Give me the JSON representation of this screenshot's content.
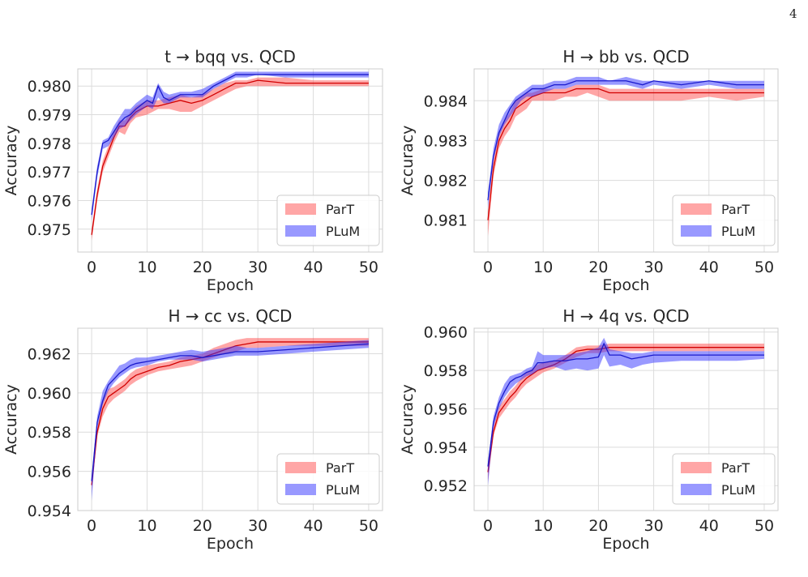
{
  "page_number": "4",
  "chart_data": [
    {
      "type": "area",
      "title": "t → bqq vs. QCD",
      "xlabel": "Epoch",
      "ylabel": "Accuracy",
      "xlim": [
        -2.5,
        52.5
      ],
      "ylim": [
        0.9742,
        0.9806
      ],
      "xticks": [
        0,
        10,
        20,
        30,
        40,
        50
      ],
      "xtick_labels": [
        "0",
        "10",
        "20",
        "30",
        "40",
        "50"
      ],
      "yticks": [
        0.975,
        0.976,
        0.977,
        0.978,
        0.979,
        0.98
      ],
      "ytick_labels": [
        "0.975",
        "0.976",
        "0.977",
        "0.978",
        "0.979",
        "0.980"
      ],
      "grid": true,
      "legend_position": "lower-right",
      "series": [
        {
          "name": "ParT",
          "color": "#ff4d4d",
          "x": [
            0,
            1,
            2,
            3,
            4,
            5,
            6,
            7,
            8,
            10,
            12,
            14,
            16,
            18,
            20,
            22,
            24,
            26,
            28,
            30,
            35,
            40,
            45,
            50
          ],
          "mean": [
            0.9748,
            0.9762,
            0.9772,
            0.9777,
            0.9782,
            0.9786,
            0.9786,
            0.9789,
            0.9791,
            0.9793,
            0.9793,
            0.9794,
            0.9795,
            0.9794,
            0.9795,
            0.9797,
            0.9799,
            0.9801,
            0.9801,
            0.9802,
            0.9801,
            0.9801,
            0.9801,
            0.9801
          ],
          "lower": [
            0.9746,
            0.976,
            0.977,
            0.9775,
            0.978,
            0.9784,
            0.9783,
            0.9787,
            0.9789,
            0.979,
            0.9792,
            0.9792,
            0.9791,
            0.9791,
            0.9793,
            0.9795,
            0.9797,
            0.9799,
            0.98,
            0.98,
            0.98,
            0.98,
            0.98,
            0.98
          ],
          "upper": [
            0.975,
            0.9764,
            0.9774,
            0.9779,
            0.9784,
            0.9788,
            0.9788,
            0.9791,
            0.9793,
            0.9795,
            0.9795,
            0.9796,
            0.9797,
            0.9796,
            0.9797,
            0.9799,
            0.9801,
            0.9802,
            0.9802,
            0.9803,
            0.9803,
            0.9802,
            0.9802,
            0.9802
          ]
        },
        {
          "name": "PLuM",
          "color": "#3333ff",
          "x": [
            0,
            1,
            2,
            3,
            4,
            5,
            6,
            7,
            8,
            10,
            11,
            12,
            13,
            14,
            16,
            18,
            20,
            22,
            24,
            26,
            28,
            30,
            35,
            40,
            45,
            50
          ],
          "mean": [
            0.9755,
            0.977,
            0.978,
            0.9781,
            0.9784,
            0.9787,
            0.9789,
            0.979,
            0.9792,
            0.9795,
            0.9794,
            0.98,
            0.9796,
            0.9795,
            0.9797,
            0.9797,
            0.9797,
            0.98,
            0.9802,
            0.9804,
            0.9804,
            0.9804,
            0.9804,
            0.9804,
            0.9804,
            0.9804
          ],
          "lower": [
            0.9753,
            0.9768,
            0.9778,
            0.9779,
            0.9782,
            0.9785,
            0.9786,
            0.9788,
            0.979,
            0.9793,
            0.9792,
            0.9796,
            0.9794,
            0.9794,
            0.9796,
            0.9796,
            0.9796,
            0.9799,
            0.9801,
            0.9803,
            0.9803,
            0.9804,
            0.9803,
            0.9803,
            0.9803,
            0.9803
          ],
          "upper": [
            0.9757,
            0.9772,
            0.9781,
            0.9782,
            0.9786,
            0.9789,
            0.9792,
            0.9792,
            0.9794,
            0.9797,
            0.9796,
            0.9801,
            0.9798,
            0.9797,
            0.9798,
            0.9798,
            0.9799,
            0.9801,
            0.9803,
            0.9805,
            0.9805,
            0.9805,
            0.9805,
            0.9805,
            0.9805,
            0.9805
          ]
        }
      ]
    },
    {
      "type": "area",
      "title": "H → bb vs. QCD",
      "xlabel": "Epoch",
      "ylabel": "Accuracy",
      "xlim": [
        -2.5,
        52.5
      ],
      "ylim": [
        0.9802,
        0.9848
      ],
      "xticks": [
        0,
        10,
        20,
        30,
        40,
        50
      ],
      "xtick_labels": [
        "0",
        "10",
        "20",
        "30",
        "40",
        "50"
      ],
      "yticks": [
        0.981,
        0.982,
        0.983,
        0.984
      ],
      "ytick_labels": [
        "0.981",
        "0.982",
        "0.983",
        "0.984"
      ],
      "grid": true,
      "legend_position": "lower-right",
      "series": [
        {
          "name": "ParT",
          "color": "#ff4d4d",
          "x": [
            0,
            1,
            2,
            3,
            4,
            5,
            6,
            7,
            8,
            10,
            12,
            14,
            16,
            18,
            20,
            22,
            25,
            28,
            30,
            35,
            40,
            45,
            50
          ],
          "mean": [
            0.981,
            0.9823,
            0.983,
            0.9833,
            0.9835,
            0.9838,
            0.9839,
            0.984,
            0.9841,
            0.9842,
            0.9842,
            0.9842,
            0.9843,
            0.9843,
            0.9843,
            0.9842,
            0.9842,
            0.9842,
            0.9842,
            0.9842,
            0.9842,
            0.9842,
            0.9842
          ],
          "lower": [
            0.9806,
            0.9821,
            0.9828,
            0.9831,
            0.9833,
            0.9836,
            0.9837,
            0.9838,
            0.984,
            0.984,
            0.984,
            0.9841,
            0.9841,
            0.9842,
            0.9841,
            0.984,
            0.984,
            0.984,
            0.984,
            0.984,
            0.9841,
            0.984,
            0.9841
          ],
          "upper": [
            0.9812,
            0.9825,
            0.9832,
            0.9835,
            0.9837,
            0.984,
            0.9841,
            0.9842,
            0.9842,
            0.9843,
            0.9843,
            0.9843,
            0.9844,
            0.9844,
            0.9844,
            0.9843,
            0.9843,
            0.9843,
            0.9843,
            0.9843,
            0.9843,
            0.9843,
            0.9843
          ]
        },
        {
          "name": "PLuM",
          "color": "#3333ff",
          "x": [
            0,
            1,
            2,
            3,
            4,
            5,
            6,
            7,
            8,
            10,
            12,
            14,
            16,
            18,
            20,
            22,
            25,
            28,
            30,
            35,
            40,
            45,
            50
          ],
          "mean": [
            0.9815,
            0.9826,
            0.9832,
            0.9835,
            0.9838,
            0.984,
            0.9841,
            0.9842,
            0.9843,
            0.9843,
            0.9844,
            0.9844,
            0.9845,
            0.9845,
            0.9845,
            0.9845,
            0.9845,
            0.9844,
            0.9845,
            0.9844,
            0.9845,
            0.9844,
            0.9844
          ],
          "lower": [
            0.9813,
            0.9825,
            0.9831,
            0.9834,
            0.9836,
            0.9838,
            0.984,
            0.9841,
            0.9841,
            0.9842,
            0.9843,
            0.9843,
            0.9844,
            0.9844,
            0.9844,
            0.9844,
            0.9844,
            0.9843,
            0.9844,
            0.9843,
            0.9844,
            0.9843,
            0.9843
          ],
          "upper": [
            0.9817,
            0.9828,
            0.9834,
            0.9837,
            0.9839,
            0.9841,
            0.9842,
            0.9843,
            0.9844,
            0.9844,
            0.9845,
            0.9845,
            0.9846,
            0.9846,
            0.9846,
            0.9845,
            0.9846,
            0.9845,
            0.9845,
            0.9845,
            0.9845,
            0.9845,
            0.9845
          ]
        }
      ]
    },
    {
      "type": "area",
      "title": "H → cc vs. QCD",
      "xlabel": "Epoch",
      "ylabel": "Accuracy",
      "xlim": [
        -2.5,
        52.5
      ],
      "ylim": [
        0.954,
        0.9633
      ],
      "xticks": [
        0,
        10,
        20,
        30,
        40,
        50
      ],
      "xtick_labels": [
        "0",
        "10",
        "20",
        "30",
        "40",
        "50"
      ],
      "yticks": [
        0.954,
        0.956,
        0.958,
        0.96,
        0.962
      ],
      "ytick_labels": [
        "0.954",
        "0.956",
        "0.958",
        "0.960",
        "0.962"
      ],
      "grid": true,
      "legend_position": "lower-right",
      "series": [
        {
          "name": "ParT",
          "color": "#ff4d4d",
          "x": [
            0,
            1,
            2,
            3,
            4,
            5,
            6,
            7,
            8,
            10,
            12,
            14,
            16,
            18,
            20,
            22,
            24,
            26,
            28,
            30,
            35,
            40,
            45,
            50
          ],
          "mean": [
            0.9553,
            0.958,
            0.9592,
            0.9598,
            0.96,
            0.9602,
            0.9604,
            0.9607,
            0.9609,
            0.9611,
            0.9613,
            0.9614,
            0.9616,
            0.9617,
            0.9618,
            0.962,
            0.9622,
            0.9624,
            0.9625,
            0.9626,
            0.9626,
            0.9626,
            0.9626,
            0.9626
          ],
          "lower": [
            0.955,
            0.9578,
            0.9588,
            0.9594,
            0.9597,
            0.9599,
            0.9601,
            0.9604,
            0.9606,
            0.9609,
            0.9611,
            0.9612,
            0.9613,
            0.9614,
            0.9616,
            0.9618,
            0.962,
            0.9621,
            0.9623,
            0.9623,
            0.9624,
            0.9624,
            0.9624,
            0.9624
          ],
          "upper": [
            0.9556,
            0.9582,
            0.9596,
            0.9602,
            0.9603,
            0.9605,
            0.9607,
            0.961,
            0.9612,
            0.9614,
            0.9615,
            0.9616,
            0.9618,
            0.9619,
            0.962,
            0.9623,
            0.9625,
            0.9627,
            0.9628,
            0.9628,
            0.9628,
            0.9628,
            0.9628,
            0.9628
          ]
        },
        {
          "name": "PLuM",
          "color": "#3333ff",
          "x": [
            0,
            1,
            2,
            3,
            4,
            5,
            6,
            7,
            8,
            10,
            12,
            14,
            16,
            18,
            20,
            22,
            24,
            26,
            28,
            30,
            35,
            40,
            45,
            50
          ],
          "mean": [
            0.9555,
            0.9585,
            0.9596,
            0.9604,
            0.9607,
            0.961,
            0.9612,
            0.9614,
            0.9615,
            0.9616,
            0.9617,
            0.9618,
            0.9619,
            0.9619,
            0.9618,
            0.9619,
            0.962,
            0.9621,
            0.9621,
            0.9621,
            0.9622,
            0.9623,
            0.9624,
            0.9625
          ],
          "lower": [
            0.9545,
            0.9582,
            0.9594,
            0.9601,
            0.9605,
            0.9608,
            0.961,
            0.9612,
            0.9613,
            0.9614,
            0.9616,
            0.9617,
            0.9617,
            0.9617,
            0.9616,
            0.9617,
            0.9618,
            0.9619,
            0.9619,
            0.9619,
            0.962,
            0.9621,
            0.9622,
            0.9623
          ],
          "upper": [
            0.9557,
            0.9588,
            0.9601,
            0.9606,
            0.961,
            0.9614,
            0.9615,
            0.9617,
            0.9618,
            0.9618,
            0.9619,
            0.962,
            0.9621,
            0.9622,
            0.9621,
            0.9622,
            0.9623,
            0.9624,
            0.9623,
            0.9623,
            0.9624,
            0.9625,
            0.9626,
            0.9627
          ]
        }
      ]
    },
    {
      "type": "area",
      "title": "H → 4q vs. QCD",
      "xlabel": "Epoch",
      "ylabel": "Accuracy",
      "xlim": [
        -2.5,
        52.5
      ],
      "ylim": [
        0.9507,
        0.9602
      ],
      "xticks": [
        0,
        10,
        20,
        30,
        40,
        50
      ],
      "xtick_labels": [
        "0",
        "10",
        "20",
        "30",
        "40",
        "50"
      ],
      "yticks": [
        0.952,
        0.954,
        0.956,
        0.958,
        0.96
      ],
      "ytick_labels": [
        "0.952",
        "0.954",
        "0.956",
        "0.958",
        "0.960"
      ],
      "grid": true,
      "legend_position": "lower-right",
      "series": [
        {
          "name": "ParT",
          "color": "#ff4d4d",
          "x": [
            0,
            1,
            2,
            3,
            4,
            5,
            6,
            7,
            8,
            9,
            10,
            12,
            14,
            16,
            18,
            20,
            22,
            24,
            26,
            28,
            30,
            35,
            40,
            45,
            50
          ],
          "mean": [
            0.9527,
            0.9548,
            0.9558,
            0.9562,
            0.9566,
            0.9569,
            0.9573,
            0.9576,
            0.9578,
            0.958,
            0.9581,
            0.9583,
            0.9586,
            0.959,
            0.9591,
            0.9591,
            0.9592,
            0.9592,
            0.9592,
            0.9592,
            0.9592,
            0.9592,
            0.9592,
            0.9592,
            0.9592
          ],
          "lower": [
            0.9522,
            0.9546,
            0.9555,
            0.9559,
            0.9563,
            0.9566,
            0.957,
            0.9573,
            0.9575,
            0.9577,
            0.9579,
            0.9581,
            0.9584,
            0.9587,
            0.9589,
            0.9589,
            0.959,
            0.959,
            0.959,
            0.959,
            0.959,
            0.959,
            0.959,
            0.959,
            0.959
          ],
          "upper": [
            0.953,
            0.9551,
            0.9561,
            0.9565,
            0.9569,
            0.9572,
            0.9576,
            0.9579,
            0.9581,
            0.9583,
            0.9584,
            0.9585,
            0.9588,
            0.9592,
            0.9593,
            0.9593,
            0.9594,
            0.9594,
            0.9594,
            0.9594,
            0.9594,
            0.9594,
            0.9594,
            0.9594,
            0.9594
          ]
        },
        {
          "name": "PLuM",
          "color": "#3333ff",
          "x": [
            0,
            1,
            2,
            3,
            4,
            5,
            6,
            7,
            8,
            9,
            10,
            12,
            14,
            16,
            18,
            20,
            21,
            22,
            24,
            26,
            28,
            30,
            35,
            40,
            45,
            50
          ],
          "mean": [
            0.953,
            0.9553,
            0.9563,
            0.9569,
            0.9574,
            0.9576,
            0.9577,
            0.9579,
            0.958,
            0.9584,
            0.9584,
            0.9585,
            0.9585,
            0.9586,
            0.9586,
            0.9587,
            0.9594,
            0.9588,
            0.9588,
            0.9586,
            0.9587,
            0.9588,
            0.9588,
            0.9588,
            0.9588,
            0.9588
          ],
          "lower": [
            0.952,
            0.955,
            0.956,
            0.9566,
            0.957,
            0.9573,
            0.9575,
            0.9577,
            0.9578,
            0.958,
            0.9581,
            0.9582,
            0.958,
            0.9581,
            0.958,
            0.9581,
            0.9588,
            0.9582,
            0.9583,
            0.9581,
            0.9583,
            0.9584,
            0.9585,
            0.9585,
            0.9585,
            0.9586
          ],
          "upper": [
            0.9532,
            0.9556,
            0.9566,
            0.9573,
            0.9577,
            0.9578,
            0.9579,
            0.9581,
            0.9582,
            0.959,
            0.9588,
            0.9588,
            0.9588,
            0.9589,
            0.959,
            0.9592,
            0.9597,
            0.9591,
            0.959,
            0.9589,
            0.9589,
            0.959,
            0.959,
            0.959,
            0.959,
            0.959
          ]
        }
      ]
    }
  ]
}
